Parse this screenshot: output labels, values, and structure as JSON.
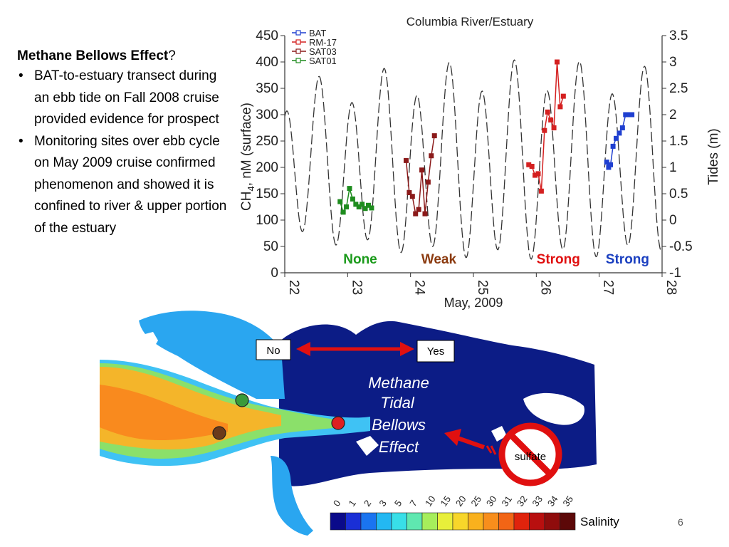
{
  "slide": {
    "heading": "Methane Bellows Effect",
    "heading_suffix": "?",
    "bullets": [
      "BAT-to-estuary transect during an ebb tide on Fall 2008 cruise provided evidence for prospect",
      "Monitoring sites over ebb cycle on May 2009 cruise confirmed  phenomenon and showed it is confined to river & upper portion of the estuary"
    ],
    "page_number": "6"
  },
  "chart_data": {
    "type": "line",
    "title": "Columbia River/Estuary",
    "xlabel": "May, 2009",
    "ylabel_left": "CH4, nM (surface)",
    "ylabel_right": "Tides (m)",
    "xlim": [
      22,
      28
    ],
    "ylim_left": [
      0,
      450
    ],
    "ylim_right": [
      -1,
      3.5
    ],
    "x_ticks": [
      "22",
      "23",
      "24",
      "25",
      "26",
      "27",
      "28"
    ],
    "y_ticks_left": [
      "0",
      "50",
      "100",
      "150",
      "200",
      "250",
      "300",
      "350",
      "400",
      "450"
    ],
    "y_ticks_right": [
      "-1",
      "-0.5",
      "0",
      "0.5",
      "1",
      "1.5",
      "2",
      "2.5",
      "3",
      "3.5"
    ],
    "legend_position": "top-left",
    "series": [
      {
        "name": "BAT",
        "color": "#1f3fd0",
        "x": [
          27.12,
          27.15,
          27.18,
          27.22,
          27.27,
          27.32,
          27.37,
          27.42,
          27.47,
          27.52
        ],
        "y": [
          210,
          200,
          205,
          240,
          255,
          265,
          275,
          300,
          300,
          300
        ]
      },
      {
        "name": "RM-17",
        "color": "#d42020",
        "x": [
          25.88,
          25.93,
          25.98,
          26.03,
          26.08,
          26.13,
          26.18,
          26.23,
          26.28,
          26.33,
          26.38,
          26.43
        ],
        "y": [
          205,
          202,
          185,
          188,
          155,
          270,
          305,
          290,
          275,
          400,
          315,
          335
        ]
      },
      {
        "name": "SAT03",
        "color": "#8b1a1a",
        "x": [
          23.93,
          23.98,
          24.03,
          24.08,
          24.13,
          24.18,
          24.23,
          24.28,
          24.33,
          24.38
        ],
        "y": [
          213,
          152,
          145,
          112,
          120,
          195,
          112,
          172,
          222,
          260
        ]
      },
      {
        "name": "SAT01",
        "color": "#1e8c1e",
        "x": [
          22.88,
          22.93,
          22.98,
          23.03,
          23.08,
          23.13,
          23.18,
          23.23,
          23.28,
          23.33,
          23.38
        ],
        "y": [
          135,
          115,
          125,
          160,
          140,
          130,
          125,
          130,
          122,
          128,
          123
        ]
      }
    ],
    "annotations": [
      {
        "text": "None",
        "color": "#1a9a1a",
        "x": 23.2
      },
      {
        "text": "Weak",
        "color": "#8b3a0f",
        "x": 24.45
      },
      {
        "text": "Strong",
        "color": "#e01010",
        "x": 26.35
      },
      {
        "text": "Strong",
        "color": "#1a3fc0",
        "x": 27.45
      }
    ]
  },
  "map": {
    "no_label": "No",
    "yes_label": "Yes",
    "bellows_lines": [
      "Methane",
      "Tidal",
      "Bellows",
      "Effect"
    ],
    "sulfate_label": "sulfate",
    "salinity_title": "Salinity",
    "salinity_ticks": [
      "0",
      "1",
      "2",
      "3",
      "5",
      "7",
      "10",
      "15",
      "20",
      "25",
      "30",
      "31",
      "32",
      "33",
      "34",
      "35"
    ],
    "salinity_colors": [
      "#0a0a8a",
      "#1a2fd6",
      "#1a74f0",
      "#23b8f2",
      "#38dfe8",
      "#5fe8b0",
      "#a6ee5c",
      "#e8ef3a",
      "#f8d62a",
      "#f9b11d",
      "#f88e1c",
      "#f26515",
      "#e0230c",
      "#b80f0f",
      "#8f0c0c",
      "#5c0808"
    ],
    "marker_colors": [
      "#3a9a3a",
      "#6b3a1a",
      "#dd2020"
    ]
  }
}
